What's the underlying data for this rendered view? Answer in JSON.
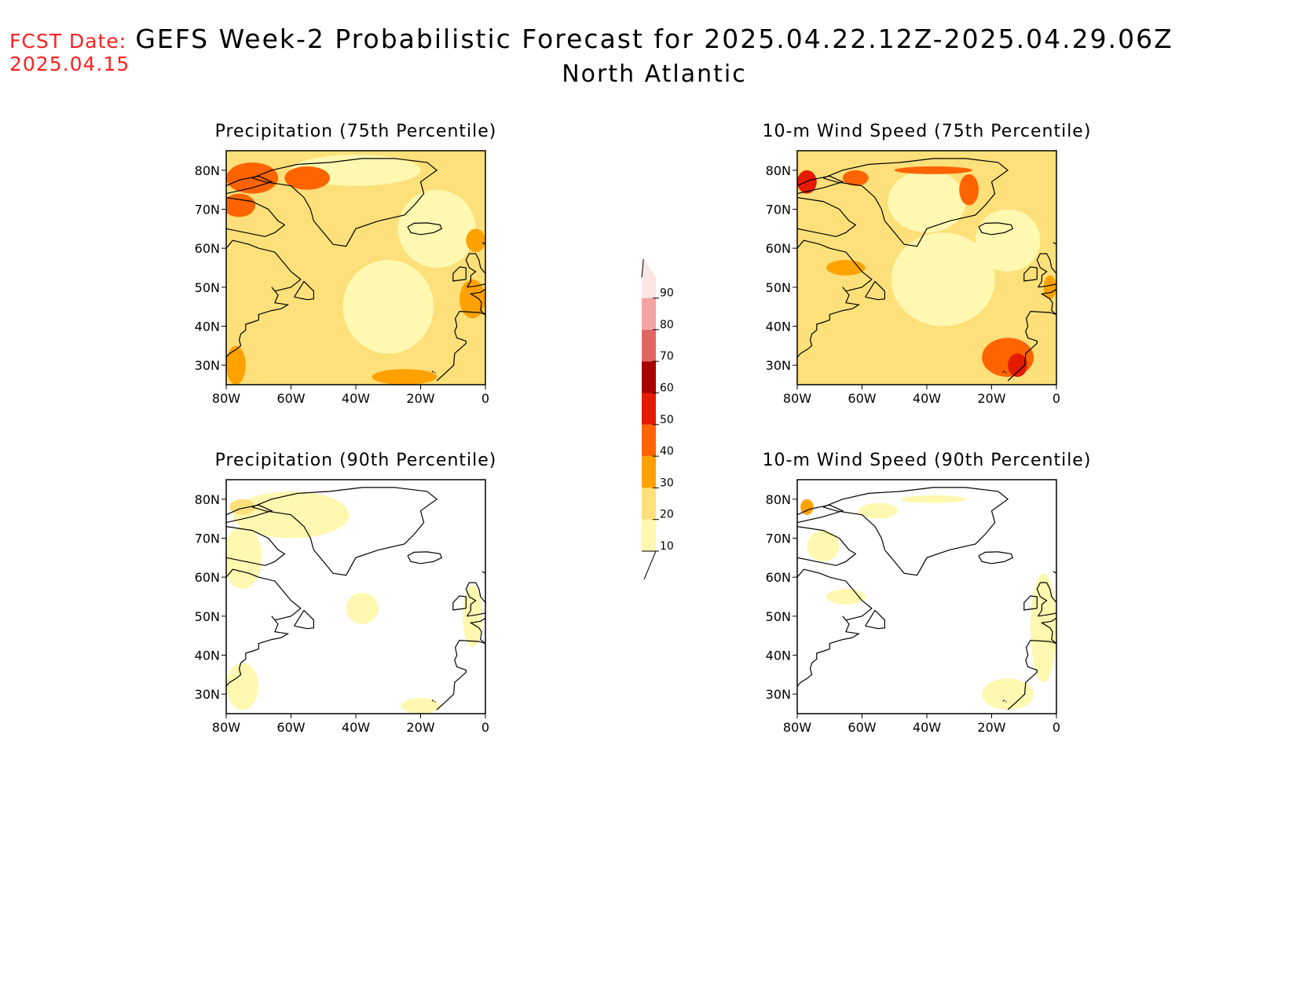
{
  "header": {
    "fcst_label": "FCST Date:",
    "fcst_date": "2025.04.15",
    "title": "GEFS Week-2 Probabilistic Forecast for 2025.04.22.12Z-2025.04.29.06Z",
    "region": "North Atlantic"
  },
  "axes": {
    "lat_ticks": [
      "80N",
      "70N",
      "60N",
      "50N",
      "40N",
      "30N"
    ],
    "lat_values": [
      80,
      70,
      60,
      50,
      40,
      30
    ],
    "lon_ticks": [
      "80W",
      "60W",
      "40W",
      "20W",
      "0"
    ],
    "lon_values": [
      -80,
      -60,
      -40,
      -20,
      0
    ],
    "lat_range": [
      25,
      85
    ],
    "lon_range": [
      -80,
      0
    ]
  },
  "colorbar": {
    "levels": [
      "10",
      "20",
      "30",
      "40",
      "50",
      "60",
      "70",
      "80",
      "90"
    ],
    "colors": [
      "#fff8b0",
      "#fde07a",
      "#ffa200",
      "#ff6400",
      "#e51b00",
      "#a80000",
      "#e06666",
      "#f4a3a3",
      "#fde5e5"
    ]
  },
  "panels": [
    {
      "id": "precip-75",
      "title": "Precipitation (75th Percentile)",
      "background": "#fde07a",
      "blobs": [
        {
          "lon": -30,
          "lat": 45,
          "rlon": 14,
          "rlat": 12,
          "level": 10
        },
        {
          "lon": -15,
          "lat": 65,
          "rlon": 12,
          "rlat": 10,
          "level": 10
        },
        {
          "lon": -40,
          "lat": 80,
          "rlon": 20,
          "rlat": 4,
          "level": 10
        },
        {
          "lon": -72,
          "lat": 78,
          "rlon": 8,
          "rlat": 4,
          "level": 40
        },
        {
          "lon": -55,
          "lat": 78,
          "rlon": 7,
          "rlat": 3,
          "level": 40
        },
        {
          "lon": -76,
          "lat": 71,
          "rlon": 5,
          "rlat": 3,
          "level": 40
        },
        {
          "lon": -4,
          "lat": 47,
          "rlon": 4,
          "rlat": 5,
          "level": 30
        },
        {
          "lon": -25,
          "lat": 27,
          "rlon": 10,
          "rlat": 2,
          "level": 30
        },
        {
          "lon": -77,
          "lat": 30,
          "rlon": 3,
          "rlat": 5,
          "level": 30
        },
        {
          "lon": -3,
          "lat": 62,
          "rlon": 3,
          "rlat": 3,
          "level": 30
        }
      ]
    },
    {
      "id": "wind-75",
      "title": "10-m Wind Speed (75th Percentile)",
      "background": "#fde07a",
      "blobs": [
        {
          "lon": -35,
          "lat": 52,
          "rlon": 16,
          "rlat": 12,
          "level": 10
        },
        {
          "lon": -40,
          "lat": 72,
          "rlon": 12,
          "rlat": 8,
          "level": 10
        },
        {
          "lon": -15,
          "lat": 62,
          "rlon": 10,
          "rlat": 8,
          "level": 10
        },
        {
          "lon": -27,
          "lat": 75,
          "rlon": 3,
          "rlat": 4,
          "level": 40
        },
        {
          "lon": -38,
          "lat": 80,
          "rlon": 12,
          "rlat": 1,
          "level": 40
        },
        {
          "lon": -62,
          "lat": 78,
          "rlon": 4,
          "rlat": 2,
          "level": 40
        },
        {
          "lon": -77,
          "lat": 77,
          "rlon": 3,
          "rlat": 3,
          "level": 50
        },
        {
          "lon": -15,
          "lat": 32,
          "rlon": 8,
          "rlat": 5,
          "level": 40
        },
        {
          "lon": -12,
          "lat": 30,
          "rlon": 3,
          "rlat": 3,
          "level": 50
        },
        {
          "lon": -65,
          "lat": 55,
          "rlon": 6,
          "rlat": 2,
          "level": 30
        },
        {
          "lon": -2,
          "lat": 50,
          "rlon": 2,
          "rlat": 3,
          "level": 30
        }
      ]
    },
    {
      "id": "precip-90",
      "title": "Precipitation (90th Percentile)",
      "background": "#ffffff",
      "blobs": [
        {
          "lon": -60,
          "lat": 76,
          "rlon": 18,
          "rlat": 6,
          "level": 10
        },
        {
          "lon": -75,
          "lat": 65,
          "rlon": 6,
          "rlat": 8,
          "level": 10
        },
        {
          "lon": -38,
          "lat": 52,
          "rlon": 5,
          "rlat": 4,
          "level": 10
        },
        {
          "lon": -75,
          "lat": 32,
          "rlon": 5,
          "rlat": 6,
          "level": 10
        },
        {
          "lon": -4,
          "lat": 50,
          "rlon": 3,
          "rlat": 8,
          "level": 10
        },
        {
          "lon": -20,
          "lat": 27,
          "rlon": 6,
          "rlat": 2,
          "level": 10
        },
        {
          "lon": -75,
          "lat": 78,
          "rlon": 4,
          "rlat": 2,
          "level": 20
        }
      ]
    },
    {
      "id": "wind-90",
      "title": "10-m Wind Speed (90th Percentile)",
      "background": "#ffffff",
      "blobs": [
        {
          "lon": -4,
          "lat": 47,
          "rlon": 4,
          "rlat": 14,
          "level": 10
        },
        {
          "lon": -15,
          "lat": 30,
          "rlon": 8,
          "rlat": 4,
          "level": 10
        },
        {
          "lon": -38,
          "lat": 80,
          "rlon": 10,
          "rlat": 1,
          "level": 10
        },
        {
          "lon": -55,
          "lat": 77,
          "rlon": 6,
          "rlat": 2,
          "level": 10
        },
        {
          "lon": -72,
          "lat": 68,
          "rlon": 5,
          "rlat": 4,
          "level": 10
        },
        {
          "lon": -65,
          "lat": 55,
          "rlon": 6,
          "rlat": 2,
          "level": 10
        },
        {
          "lon": -77,
          "lat": 78,
          "rlon": 2,
          "rlat": 2,
          "level": 30
        }
      ]
    }
  ]
}
